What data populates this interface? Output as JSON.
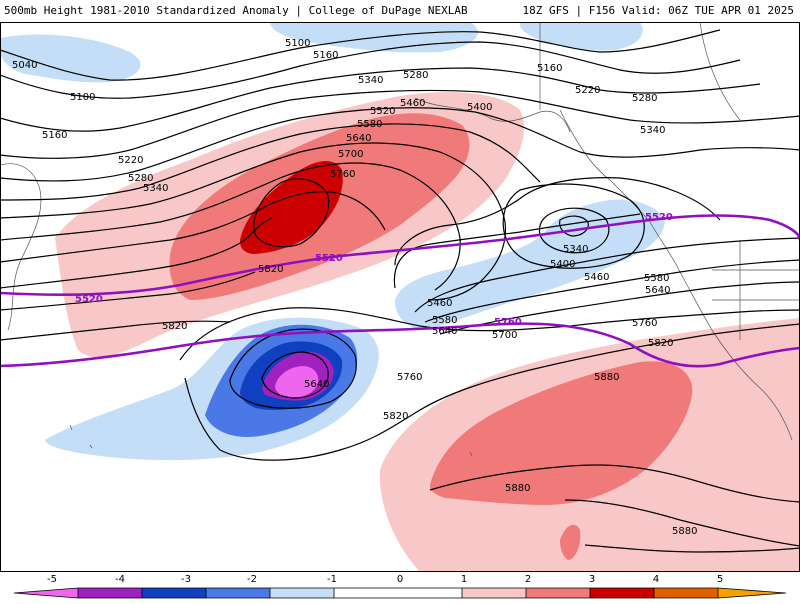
{
  "header": {
    "left_title": "500mb Height 1981-2010 Standardized Anomaly | College of DuPage NEXLAB",
    "right_title": "18Z GFS | F156 Valid: 06Z TUE APR 01 2025"
  },
  "colors": {
    "neg5": "#ee66ee",
    "neg4": "#a020c0",
    "neg3": "#1040c0",
    "neg2": "#4a78e6",
    "neg1": "#c4def8",
    "pos1": "#f8c8c8",
    "pos2": "#f07a7a",
    "pos3": "#cc0000",
    "pos4": "#e06000",
    "pos5": "#f8a000",
    "contour": "#000000",
    "highlight": "#9010c0"
  },
  "contour_labels": {
    "l5040": "5040",
    "l5100a": "5100",
    "l5100b": "5100",
    "l5160a": "5160",
    "l5160b": "5160",
    "l5160c": "5160",
    "l5220a": "5220",
    "l5220b": "5220",
    "l5280a": "5280",
    "l5280b": "5280",
    "l5280c": "5280",
    "l5340a": "5340",
    "l5340b": "5340",
    "l5340c": "5340",
    "l5340d": "5340",
    "l5400a": "5400",
    "l5400b": "5400",
    "l5460a": "5460",
    "l5460b": "5460",
    "l5520": "5520",
    "l5580a": "5580",
    "l5580b": "5580",
    "l5640a": "5640",
    "l5640b": "5640",
    "l5640c": "5640",
    "l5640d": "5640",
    "l5700a": "5700",
    "l5700b": "5700",
    "l5760a": "5760",
    "l5760b": "5760",
    "l5760c": "5760",
    "l5820a": "5820",
    "l5820b": "5820",
    "l5820c": "5820",
    "l5820d": "5820",
    "l5880a": "5880",
    "l5880b": "5880",
    "l5880c": "5880",
    "h5520a": "5520",
    "h5520b": "5520",
    "h5520c": "5520",
    "h5760": "5760"
  },
  "colorbar": {
    "ticks": [
      "-5",
      "-4",
      "-3",
      "-2",
      "-1",
      "0",
      "1",
      "2",
      "3",
      "4",
      "5"
    ]
  }
}
